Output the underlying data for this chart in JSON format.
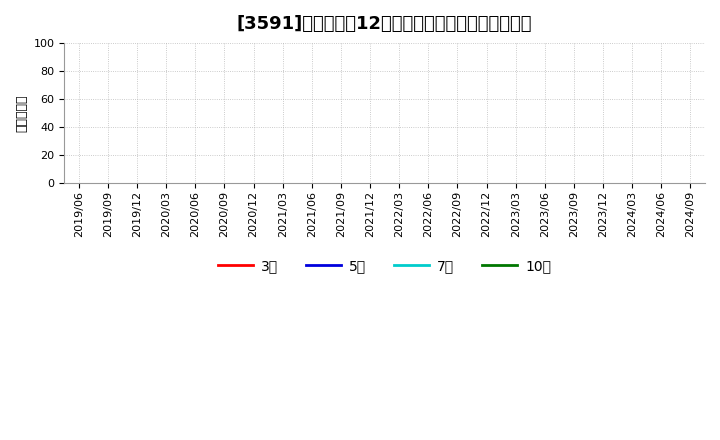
{
  "title": "[3591]　経常利益12か月移動合計の標準偏差の推移",
  "ylabel": "（百万円）",
  "ylim": [
    0,
    100
  ],
  "yticks": [
    0,
    20,
    40,
    60,
    80,
    100
  ],
  "x_labels": [
    "2019/06",
    "2019/09",
    "2019/12",
    "2020/03",
    "2020/06",
    "2020/09",
    "2020/12",
    "2021/03",
    "2021/06",
    "2021/09",
    "2021/12",
    "2022/03",
    "2022/06",
    "2022/09",
    "2022/12",
    "2023/03",
    "2023/06",
    "2023/09",
    "2023/12",
    "2024/03",
    "2024/06",
    "2024/09"
  ],
  "legend_entries": [
    {
      "label": "3年",
      "color": "#ff0000"
    },
    {
      "label": "5年",
      "color": "#0000dd"
    },
    {
      "label": "7年",
      "color": "#00cccc"
    },
    {
      "label": "10年",
      "color": "#007700"
    }
  ],
  "background_color": "#ffffff",
  "grid_color": "#aaaaaa",
  "title_fontsize": 13,
  "axis_fontsize": 8,
  "ylabel_fontsize": 9,
  "legend_fontsize": 10
}
